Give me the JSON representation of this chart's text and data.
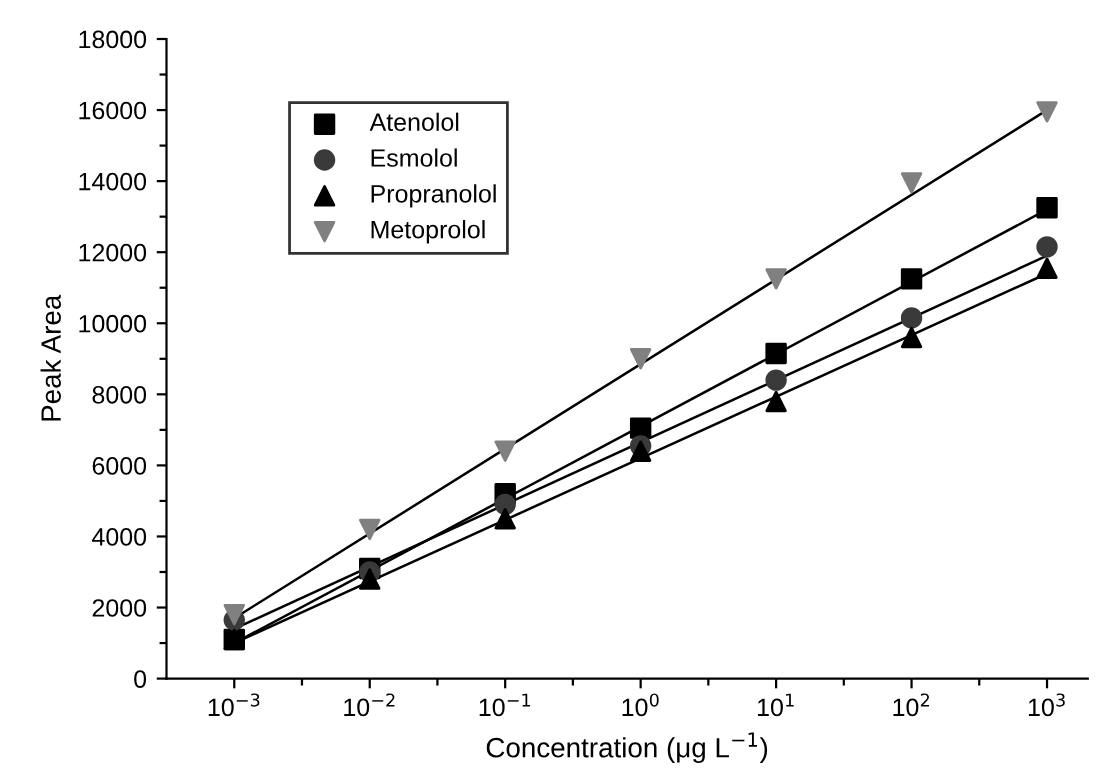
{
  "chart_data": {
    "type": "scatter",
    "xlabel": "Concentration (μg L$^{−1}$)",
    "ylabel": "Peak Area",
    "log": "x",
    "legend": "top left",
    "grid": false,
    "xlim": [
      0.000316,
      2000
    ],
    "xticks": [
      {
        "value": 0.001,
        "label": "10$^{−3}$"
      },
      {
        "value": 0.00316,
        "label": null
      },
      {
        "value": 0.01,
        "label": "10$^{−2}$"
      },
      {
        "value": 0.0316,
        "label": null
      },
      {
        "value": 0.1,
        "label": "10$^{−1}$"
      },
      {
        "value": 0.316,
        "label": null
      },
      {
        "value": 1,
        "label": "10$^{0}$"
      },
      {
        "value": 3.16,
        "label": null
      },
      {
        "value": 10,
        "label": "10$^{1}$"
      },
      {
        "value": 31.6,
        "label": null
      },
      {
        "value": 100,
        "label": "10$^{2}$"
      },
      {
        "value": 316,
        "label": null
      },
      {
        "value": 1000,
        "label": "10$^{3}$"
      }
    ],
    "ylim": [
      0,
      18000
    ],
    "yticks": [
      0,
      {
        "value": 1000,
        "label": null
      },
      2000,
      {
        "value": 3000,
        "label": null
      },
      4000,
      {
        "value": 5000,
        "label": null
      },
      6000,
      {
        "value": 7000,
        "label": null
      },
      8000,
      {
        "value": 9000,
        "label": null
      },
      10000,
      {
        "value": 11000,
        "label": null
      },
      12000,
      {
        "value": 13000,
        "label": null
      },
      14000,
      {
        "value": 15000,
        "label": null
      },
      16000,
      {
        "value": 17000,
        "label": null
      },
      18000
    ],
    "series": [
      {
        "name": "Atenolol",
        "marker": "square",
        "color": "#000000",
        "x": [
          0.001,
          0.01,
          0.1,
          1,
          10,
          100,
          1000
        ],
        "values": [
          1100,
          3100,
          5200,
          7050,
          9150,
          11250,
          13250
        ]
      },
      {
        "name": "Esmolol",
        "marker": "circle",
        "color": "#3a3a3a",
        "x": [
          0.001,
          0.01,
          0.1,
          1,
          10,
          100,
          1000
        ],
        "values": [
          1650,
          3000,
          4900,
          6550,
          8400,
          10150,
          12150
        ]
      },
      {
        "name": "Propranolol",
        "marker": "triangle",
        "color": "#000000",
        "x": [
          0.001,
          0.01,
          0.1,
          1,
          10,
          100,
          1000
        ],
        "values": [
          1100,
          2800,
          4500,
          6400,
          7800,
          9600,
          11550
        ]
      },
      {
        "name": "Metoprolol",
        "marker": "triangle_down",
        "color": "#808080",
        "x": [
          0.001,
          0.01,
          0.1,
          1,
          10,
          100,
          1000
        ],
        "values": [
          1800,
          4200,
          6400,
          9000,
          11250,
          13950,
          15950
        ]
      },
      {
        "type": "line",
        "color": "#000000",
        "x": [
          0.001,
          1000
        ],
        "values": [
          1000,
          13200
        ]
      },
      {
        "type": "line",
        "color": "#000000",
        "x": [
          0.001,
          1000
        ],
        "values": [
          1400,
          11900
        ]
      },
      {
        "type": "line",
        "color": "#000000",
        "x": [
          0.001,
          1000
        ],
        "values": [
          1000,
          11400
        ]
      },
      {
        "type": "line",
        "color": "#000000",
        "x": [
          0.001,
          1000
        ],
        "values": [
          1700,
          16000
        ]
      }
    ]
  }
}
